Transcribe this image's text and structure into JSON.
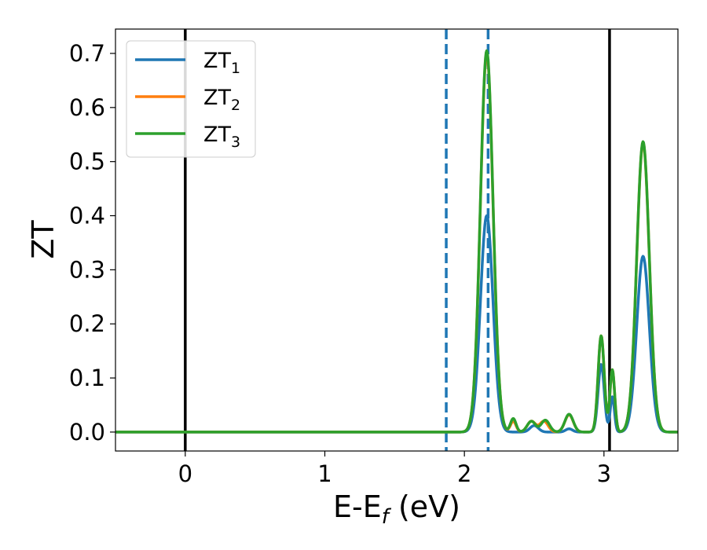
{
  "chart_data": {
    "type": "line",
    "xlabel": "E-E",
    "xlabel_sub": "f",
    "xlabel_unit": " (eV)",
    "ylabel": "ZT",
    "xlim": [
      -0.5,
      3.53
    ],
    "ylim": [
      -0.035,
      0.745
    ],
    "x_ticks": [
      0,
      1,
      2,
      3
    ],
    "y_ticks": [
      0.0,
      0.1,
      0.2,
      0.3,
      0.4,
      0.5,
      0.6,
      0.7
    ],
    "x_tick_labels": [
      "0",
      "1",
      "2",
      "3"
    ],
    "y_tick_labels": [
      "0.0",
      "0.1",
      "0.2",
      "0.3",
      "0.4",
      "0.5",
      "0.6",
      "0.7"
    ],
    "grid": false,
    "legend_position": "upper-left",
    "vertical_lines": [
      {
        "x": 0.0,
        "color": "#000000",
        "style": "solid"
      },
      {
        "x": 3.04,
        "color": "#000000",
        "style": "solid"
      },
      {
        "x": 1.87,
        "color": "#1f77b4",
        "style": "dashed"
      },
      {
        "x": 2.17,
        "color": "#1f77b4",
        "style": "dashed"
      }
    ],
    "series": [
      {
        "name": "ZT",
        "name_sub": "1",
        "color": "#1f77b4",
        "peaks": [
          {
            "center": 2.16,
            "height": 0.4,
            "width": 0.045
          },
          {
            "center": 2.5,
            "height": 0.012,
            "width": 0.03
          },
          {
            "center": 2.75,
            "height": 0.006,
            "width": 0.025
          },
          {
            "center": 2.98,
            "height": 0.125,
            "width": 0.022
          },
          {
            "center": 3.06,
            "height": 0.065,
            "width": 0.015
          },
          {
            "center": 3.28,
            "height": 0.325,
            "width": 0.045
          }
        ]
      },
      {
        "name": "ZT",
        "name_sub": "2",
        "color": "#ff7f0e",
        "peaks": [
          {
            "center": 2.16,
            "height": 0.7,
            "width": 0.045
          },
          {
            "center": 2.35,
            "height": 0.02,
            "width": 0.02
          },
          {
            "center": 2.48,
            "height": 0.02,
            "width": 0.03
          },
          {
            "center": 2.57,
            "height": 0.02,
            "width": 0.03
          },
          {
            "center": 2.75,
            "height": 0.032,
            "width": 0.03
          },
          {
            "center": 2.98,
            "height": 0.178,
            "width": 0.022
          },
          {
            "center": 3.06,
            "height": 0.115,
            "width": 0.017
          },
          {
            "center": 3.28,
            "height": 0.535,
            "width": 0.045
          }
        ]
      },
      {
        "name": "ZT",
        "name_sub": "3",
        "color": "#2ca02c",
        "peaks": [
          {
            "center": 2.16,
            "height": 0.705,
            "width": 0.045
          },
          {
            "center": 2.35,
            "height": 0.025,
            "width": 0.02
          },
          {
            "center": 2.48,
            "height": 0.02,
            "width": 0.03
          },
          {
            "center": 2.58,
            "height": 0.022,
            "width": 0.03
          },
          {
            "center": 2.75,
            "height": 0.033,
            "width": 0.03
          },
          {
            "center": 2.98,
            "height": 0.178,
            "width": 0.022
          },
          {
            "center": 3.06,
            "height": 0.115,
            "width": 0.017
          },
          {
            "center": 3.28,
            "height": 0.537,
            "width": 0.045
          }
        ]
      }
    ]
  }
}
